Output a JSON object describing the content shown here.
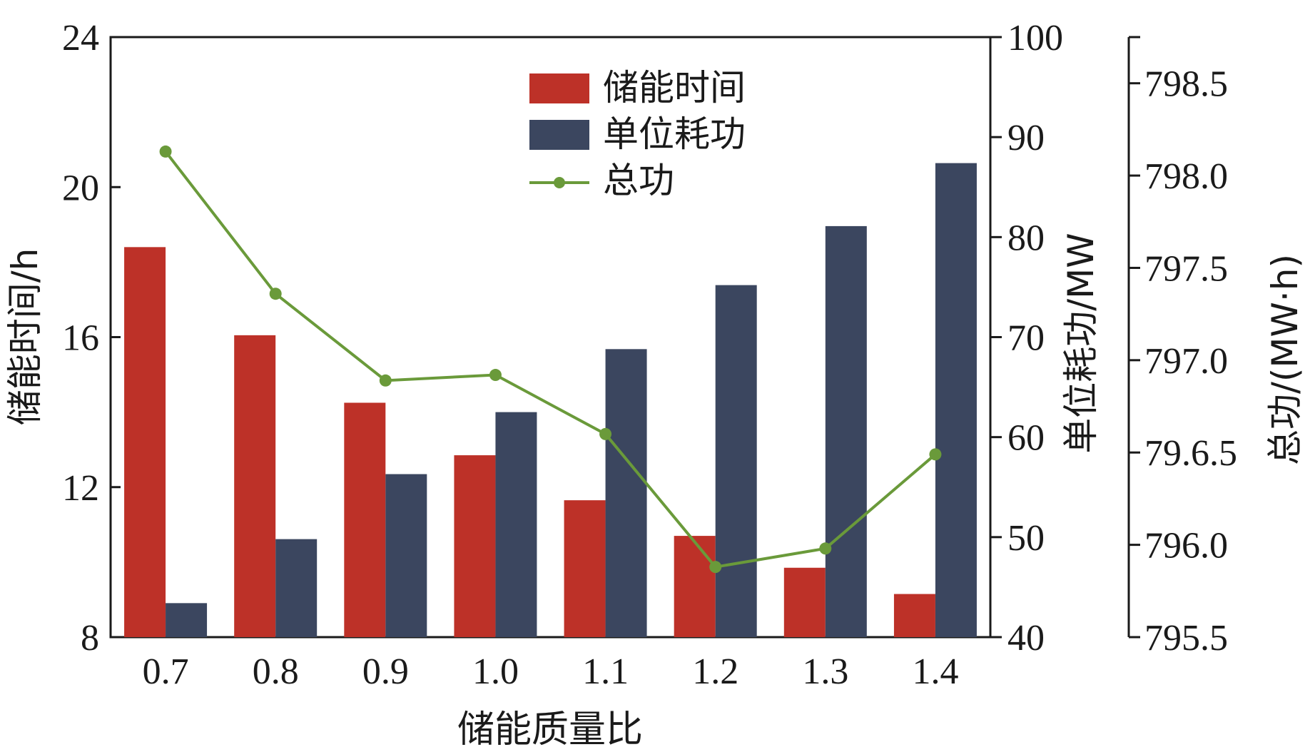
{
  "chart_data": {
    "type": "bar",
    "title": "",
    "xlabel": "储能质量比",
    "categories": [
      "0.7",
      "0.8",
      "0.9",
      "1.0",
      "1.1",
      "1.2",
      "1.3",
      "1.4"
    ],
    "y_left": {
      "label": "储能时间/h",
      "lim": [
        8,
        24
      ],
      "ticks": [
        "8",
        "12",
        "16",
        "20",
        "24"
      ]
    },
    "y_right1": {
      "label": "单位耗功/MW",
      "lim": [
        40,
        100
      ],
      "ticks": [
        "40",
        "50",
        "60",
        "70",
        "80",
        "90",
        "100"
      ]
    },
    "y_right2": {
      "label": "总功/(MW·h)",
      "lim": [
        795.5,
        798.75
      ],
      "ticks": [
        "795.5",
        "796.0",
        "79.6.5",
        "797.0",
        "797.5",
        "798.0",
        "798.5"
      ],
      "tick_values": [
        795.5,
        796.0,
        796.5,
        797.0,
        797.5,
        798.0,
        798.5
      ]
    },
    "series": [
      {
        "name": "储能时间",
        "kind": "bar",
        "axis": "left",
        "color": "#bd3128",
        "values": [
          18.4,
          16.05,
          14.25,
          12.85,
          11.65,
          10.7,
          9.85,
          9.15
        ]
      },
      {
        "name": "单位耗功",
        "kind": "bar",
        "axis": "right1",
        "color": "#3b465f",
        "values": [
          43.4,
          49.8,
          56.3,
          62.5,
          68.8,
          75.2,
          81.1,
          87.4
        ]
      },
      {
        "name": "总功",
        "kind": "line",
        "axis": "right2",
        "color": "#6a9a3a",
        "values": [
          798.13,
          797.36,
          796.89,
          796.92,
          796.6,
          795.88,
          795.98,
          796.49
        ]
      }
    ],
    "legend": {
      "position": "top-center",
      "entries": [
        "储能时间",
        "单位耗功",
        "总功"
      ]
    },
    "grid": false
  }
}
